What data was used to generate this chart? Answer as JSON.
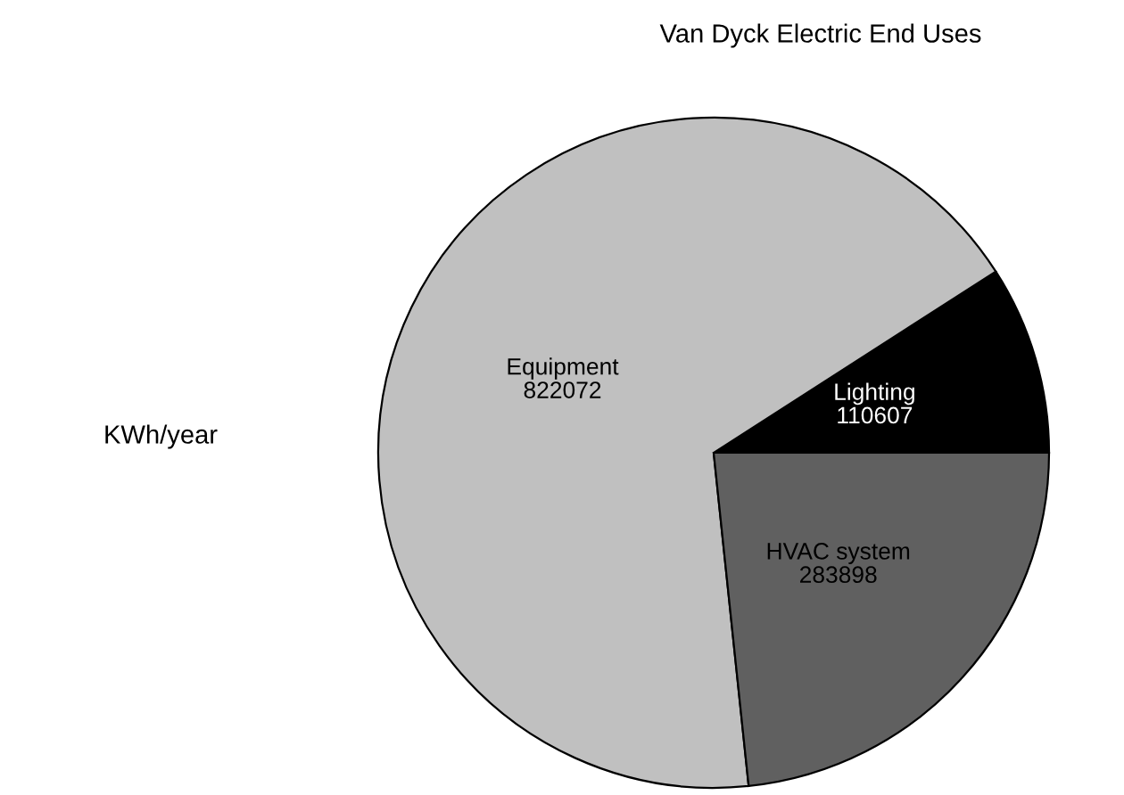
{
  "chart_data": {
    "type": "pie",
    "title": "Van Dyck Electric End Uses",
    "ylabel": "KWh/year",
    "categories": [
      "Lighting",
      "Equipment",
      "HVAC system"
    ],
    "values": [
      110607,
      822072,
      283898
    ],
    "colors": [
      "#000000",
      "#c0c0c0",
      "#606060"
    ],
    "data_labels": true,
    "legend": false
  }
}
